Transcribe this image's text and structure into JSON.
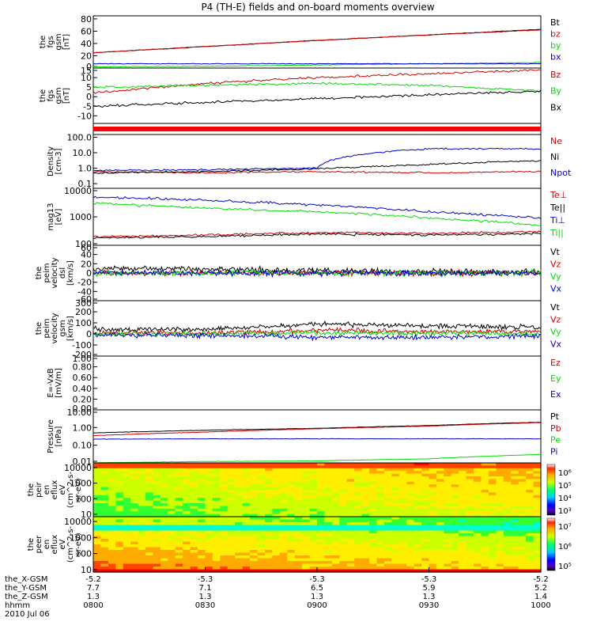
{
  "title": "P4 (TH-E) fields and on-board moments overview",
  "colors": {
    "black": "#000000",
    "red": "#d00000",
    "green": "#00dd00",
    "blue": "#0000d0"
  },
  "panels": [
    {
      "ylabel": [
        "the",
        "fgs",
        "gsm",
        "[nT]"
      ],
      "yticks": [
        "80",
        "60",
        "40",
        "20",
        "0"
      ],
      "log": false,
      "ylim": [
        0,
        85
      ],
      "legend": [
        {
          "text": "Bt",
          "color": "black"
        },
        {
          "text": "bz",
          "color": "red"
        },
        {
          "text": "by",
          "color": "green"
        },
        {
          "text": "bx",
          "color": "blue"
        }
      ]
    },
    {
      "ylabel": [
        "the",
        "fgs",
        "gsm",
        "[nT]"
      ],
      "yticks": [
        "15",
        "10",
        "5",
        "0",
        "-5",
        "-10"
      ],
      "log": false,
      "ylim": [
        -14,
        15
      ],
      "legend": [
        {
          "text": "Bz",
          "color": "red"
        },
        {
          "text": "By",
          "color": "green"
        },
        {
          "text": "Bx",
          "color": "black"
        }
      ]
    },
    {
      "ylabel": [],
      "yticks": [],
      "log": false,
      "ylim": [
        0,
        1
      ],
      "legend": []
    },
    {
      "ylabel": [
        "Density",
        "[cm-3]"
      ],
      "yticks": [
        "100.0",
        "10.0",
        "1.0",
        "0.1"
      ],
      "log": true,
      "ylim": [
        0.05,
        150
      ],
      "legend": [
        {
          "text": "Ne",
          "color": "red"
        },
        {
          "text": "Ni",
          "color": "black"
        },
        {
          "text": "Npot",
          "color": "blue"
        }
      ]
    },
    {
      "ylabel": [
        "mag13",
        "[eV]"
      ],
      "yticks": [
        "10000",
        "1000",
        "100"
      ],
      "log": true,
      "ylim": [
        100,
        10000
      ],
      "legend": [
        {
          "text": "Te⊥",
          "color": "red"
        },
        {
          "text": "Te||",
          "color": "black"
        },
        {
          "text": "Ti⊥",
          "color": "blue"
        },
        {
          "text": "Ti||",
          "color": "green"
        }
      ]
    },
    {
      "ylabel": [
        "the",
        "peim",
        "velocity",
        "dsl",
        "[km/s]"
      ],
      "yticks": [
        "60",
        "40",
        "20",
        "0",
        "-20",
        "-40",
        "-60"
      ],
      "log": false,
      "ylim": [
        -60,
        60
      ],
      "legend": [
        {
          "text": "Vt",
          "color": "black"
        },
        {
          "text": "Vz",
          "color": "red"
        },
        {
          "text": "Vy",
          "color": "green"
        },
        {
          "text": "Vx",
          "color": "blue"
        }
      ]
    },
    {
      "ylabel": [
        "the",
        "peim",
        "velocity",
        "gsm",
        "[km/s]"
      ],
      "yticks": [
        "300",
        "200",
        "100",
        "0",
        "-100",
        "-200"
      ],
      "log": false,
      "ylim": [
        -200,
        300
      ],
      "legend": [
        {
          "text": "Vt",
          "color": "black"
        },
        {
          "text": "Vz",
          "color": "red"
        },
        {
          "text": "Vy",
          "color": "green"
        },
        {
          "text": "Vx",
          "color": "blue"
        }
      ]
    },
    {
      "ylabel": [
        "E=-VxB",
        "[mV/m]"
      ],
      "yticks": [
        "1.00",
        "0.80",
        "0.60",
        "0.40",
        "0.20",
        "0.00"
      ],
      "log": false,
      "ylim": [
        0,
        1
      ],
      "legend": [
        {
          "text": "Ez",
          "color": "red"
        },
        {
          "text": "Ey",
          "color": "green"
        },
        {
          "text": "Ex",
          "color": "blue"
        }
      ]
    },
    {
      "ylabel": [
        "Pressure",
        "[nPa]"
      ],
      "yticks": [
        "10.00",
        "1.00",
        "0.10",
        "0.01"
      ],
      "log": true,
      "ylim": [
        0.01,
        10
      ],
      "legend": [
        {
          "text": "Pt",
          "color": "black"
        },
        {
          "text": "Pb",
          "color": "red"
        },
        {
          "text": "Pe",
          "color": "green"
        },
        {
          "text": "Pi",
          "color": "blue"
        }
      ]
    },
    {
      "ylabel": [
        "the",
        "peir",
        "en",
        "eflux",
        "eV",
        "(cm^2-s-",
        "sr-eV)"
      ],
      "yticks": [
        "10000",
        "1000",
        "100",
        "10"
      ],
      "log": true,
      "ylim": [
        7,
        20000
      ],
      "legend": []
    },
    {
      "ylabel": [
        "the",
        "peer",
        "en",
        "eflux",
        "eV",
        "(cm^2-s-",
        "sr-eV)"
      ],
      "yticks": [
        "10000",
        "1000",
        "100",
        "10"
      ],
      "log": true,
      "ylim": [
        7,
        20000
      ],
      "legend": []
    }
  ],
  "colorbars": [
    {
      "labels": [
        "10⁶",
        "10⁵",
        "10⁴",
        "10³"
      ]
    },
    {
      "labels": [
        "10⁷",
        "10⁶",
        "10⁵"
      ]
    }
  ],
  "xaxis": {
    "rows": [
      {
        "label": "the_X-GSM",
        "values": [
          "-5.2",
          "-5.3",
          "-5.3",
          "-5.3",
          "-5.2"
        ]
      },
      {
        "label": "the_Y-GSM",
        "values": [
          "7.7",
          "7.1",
          "6.5",
          "5.9",
          "5.2"
        ]
      },
      {
        "label": "the_Z-GSM",
        "values": [
          "1.3",
          "1.3",
          "1.3",
          "1.3",
          "1.4"
        ]
      },
      {
        "label": "hhmm",
        "values": [
          "0800",
          "0830",
          "0900",
          "0930",
          "1000"
        ]
      }
    ],
    "date": "2010 Jul 06"
  },
  "chart_data": {
    "type": "line",
    "title": "P4 (TH-E) fields and on-board moments overview",
    "x": [
      "0800",
      "0830",
      "0900",
      "0930",
      "1000"
    ],
    "panels": [
      {
        "ylabel": "the fgs gsm [nT]",
        "series": [
          {
            "name": "Bt",
            "values": [
              25,
              35,
              45,
              54,
              63
            ]
          },
          {
            "name": "bz",
            "values": [
              25,
              35,
              45,
              54,
              62
            ]
          },
          {
            "name": "by",
            "values": [
              2,
              3,
              5,
              7,
              9
            ]
          },
          {
            "name": "bx",
            "values": [
              7,
              7,
              7,
              7,
              7
            ]
          }
        ]
      },
      {
        "ylabel": "the fgs gsm [nT]",
        "series": [
          {
            "name": "Bz",
            "values": [
              2,
              7,
              10,
              12,
              14
            ]
          },
          {
            "name": "By",
            "values": [
              5,
              6,
              7,
              6,
              3
            ]
          },
          {
            "name": "Bx",
            "values": [
              -5,
              -3,
              -1,
              1,
              3
            ]
          }
        ]
      },
      {
        "ylabel": "Density [cm-3]",
        "series": [
          {
            "name": "Ne",
            "values": [
              0.6,
              0.5,
              0.6,
              0.5,
              0.6
            ]
          },
          {
            "name": "Ni",
            "values": [
              0.5,
              0.6,
              0.9,
              1.7,
              3.0
            ]
          },
          {
            "name": "Npot",
            "values": [
              0.7,
              0.8,
              1.0,
              18,
              18
            ]
          }
        ]
      },
      {
        "ylabel": "mag13 [eV]",
        "series": [
          {
            "name": "Te⊥",
            "values": [
              200,
              230,
              280,
              260,
              300
            ]
          },
          {
            "name": "Te||",
            "values": [
              180,
              200,
              250,
              230,
              260
            ]
          },
          {
            "name": "Ti⊥",
            "values": [
              5000,
              3800,
              2600,
              1500,
              900
            ]
          },
          {
            "name": "Ti||",
            "values": [
              3000,
              2000,
              1500,
              900,
              500
            ]
          }
        ]
      },
      {
        "ylabel": "the peim velocity dsl [km/s]",
        "series": [
          {
            "name": "Vt",
            "values": [
              10,
              8,
              5,
              3,
              2
            ]
          },
          {
            "name": "Vz",
            "values": [
              0,
              0,
              0,
              0,
              0
            ]
          },
          {
            "name": "Vy",
            "values": [
              0,
              0,
              0,
              0,
              0
            ]
          },
          {
            "name": "Vx",
            "values": [
              0,
              0,
              0,
              0,
              0
            ]
          }
        ]
      },
      {
        "ylabel": "the peim velocity gsm [km/s]",
        "series": [
          {
            "name": "Vt",
            "values": [
              40,
              40,
              90,
              70,
              60
            ]
          },
          {
            "name": "Vz",
            "values": [
              10,
              10,
              30,
              20,
              20
            ]
          },
          {
            "name": "Vy",
            "values": [
              0,
              0,
              10,
              5,
              5
            ]
          },
          {
            "name": "Vx",
            "values": [
              -10,
              -10,
              -30,
              -30,
              -20
            ]
          }
        ]
      },
      {
        "ylabel": "E=-VxB [mV/m]",
        "series": []
      },
      {
        "ylabel": "Pressure [nPa]",
        "series": [
          {
            "name": "Pt",
            "values": [
              0.5,
              0.7,
              0.9,
              1.3,
              2.0
            ]
          },
          {
            "name": "Pb",
            "values": [
              0.35,
              0.55,
              0.85,
              1.2,
              1.9
            ]
          },
          {
            "name": "Pe",
            "values": [
              0.01,
              0.012,
              0.013,
              0.017,
              0.03
            ]
          },
          {
            "name": "Pi",
            "values": [
              0.22,
              0.23,
              0.23,
              0.23,
              0.23
            ]
          }
        ]
      }
    ]
  }
}
